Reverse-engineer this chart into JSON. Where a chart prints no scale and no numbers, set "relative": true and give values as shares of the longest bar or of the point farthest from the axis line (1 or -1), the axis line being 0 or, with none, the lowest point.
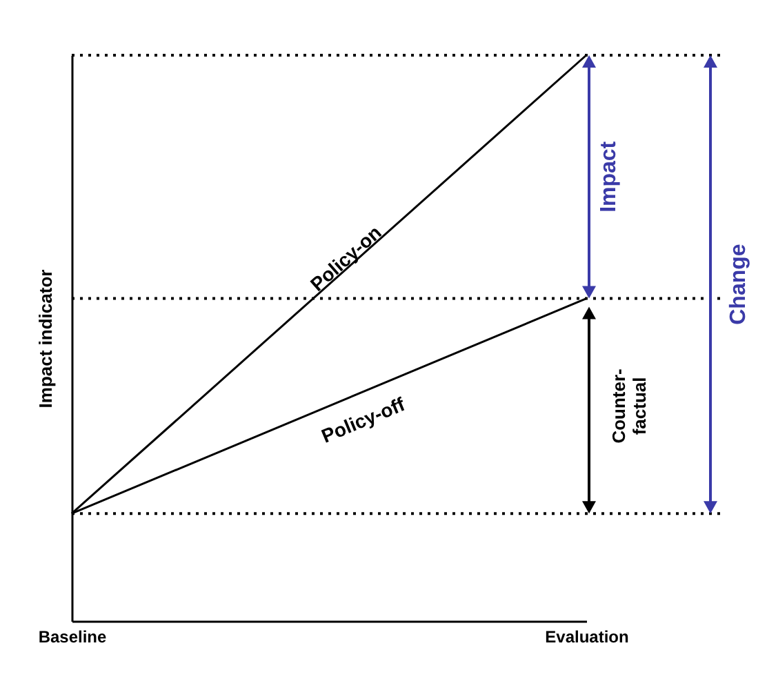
{
  "chart_data": {
    "type": "line",
    "relative": true,
    "ylabel": "Impact indicator",
    "categories": [
      "Baseline",
      "Evaluation"
    ],
    "series": [
      {
        "name": "Policy-on",
        "color": "#000000",
        "values": [
          0.19,
          1
        ]
      },
      {
        "name": "Policy-off",
        "color": "#000000",
        "values": [
          0.19,
          0.57
        ]
      }
    ],
    "ref_lines": [
      {
        "axis": "y",
        "value": 1,
        "line_style": "dotted"
      },
      {
        "axis": "y",
        "value": 0.57,
        "line_style": "dotted"
      },
      {
        "axis": "y",
        "value": 0.19,
        "line_style": "dotted"
      }
    ],
    "annotations": [
      "Impact",
      "Counter-factual",
      "Change"
    ],
    "legend": false,
    "grid": false,
    "marker": "none",
    "line_style": "solid"
  }
}
